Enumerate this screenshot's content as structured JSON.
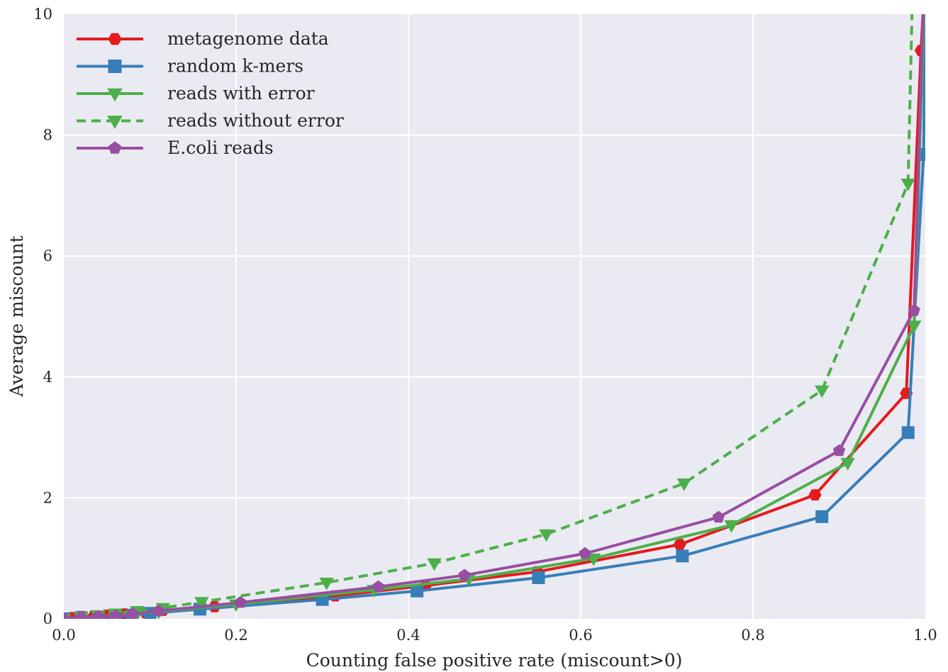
{
  "chart_data": {
    "type": "line",
    "title": "",
    "xlabel": "Counting false positive rate (miscount>0)",
    "ylabel": "Average miscount",
    "xlim": [
      0.0,
      1.0
    ],
    "ylim": [
      0,
      10
    ],
    "xticks": [
      0.0,
      0.2,
      0.4,
      0.6,
      0.8,
      1.0
    ],
    "xtick_labels": [
      "0.0",
      "0.2",
      "0.4",
      "0.6",
      "0.8",
      "1.0"
    ],
    "yticks": [
      0,
      2,
      4,
      6,
      8,
      10
    ],
    "ytick_labels": [
      "0",
      "2",
      "4",
      "6",
      "8",
      "10"
    ],
    "grid": true,
    "background": "#eaeaf2",
    "legend_position": "top-left",
    "series": [
      {
        "name": "metagenome data",
        "color": "#e41a1c",
        "style": "solid",
        "marker": "hexagon",
        "x": [
          0.0,
          0.01,
          0.02,
          0.035,
          0.05,
          0.07,
          0.095,
          0.115,
          0.175,
          0.315,
          0.42,
          0.55,
          0.715,
          0.872,
          0.978,
          0.995,
          0.998
        ],
        "y": [
          0.0,
          0.02,
          0.04,
          0.05,
          0.06,
          0.08,
          0.1,
          0.14,
          0.2,
          0.38,
          0.55,
          0.78,
          1.23,
          2.05,
          3.73,
          9.4,
          10.2
        ]
      },
      {
        "name": "random k-mers",
        "color": "#377eb8",
        "style": "solid",
        "marker": "square",
        "x": [
          0.0,
          0.02,
          0.04,
          0.06,
          0.08,
          0.1,
          0.158,
          0.3,
          0.41,
          0.551,
          0.718,
          0.88,
          0.98,
          0.998,
          1.0
        ],
        "y": [
          0.0,
          0.02,
          0.03,
          0.04,
          0.06,
          0.09,
          0.16,
          0.32,
          0.46,
          0.68,
          1.04,
          1.69,
          3.08,
          7.68,
          10.3
        ]
      },
      {
        "name": "reads with error",
        "color": "#4daf4a",
        "style": "solid",
        "marker": "triangle-down",
        "x": [
          0.0,
          0.02,
          0.04,
          0.06,
          0.085,
          0.11,
          0.2,
          0.36,
          0.47,
          0.615,
          0.775,
          0.91,
          0.987,
          0.999
        ],
        "y": [
          0.0,
          0.02,
          0.04,
          0.06,
          0.09,
          0.12,
          0.24,
          0.48,
          0.66,
          1.0,
          1.55,
          2.58,
          4.85,
          10.3
        ]
      },
      {
        "name": "reads without error",
        "color": "#4daf4a",
        "style": "dashed",
        "marker": "triangle-down",
        "x": [
          0.0,
          0.02,
          0.04,
          0.06,
          0.085,
          0.115,
          0.16,
          0.305,
          0.43,
          0.56,
          0.72,
          0.88,
          0.98,
          0.985
        ],
        "y": [
          0.0,
          0.03,
          0.06,
          0.09,
          0.13,
          0.18,
          0.28,
          0.6,
          0.92,
          1.4,
          2.24,
          3.78,
          7.2,
          10.3
        ]
      },
      {
        "name": "E.coli reads",
        "color": "#984ea3",
        "style": "solid",
        "marker": "pentagon",
        "x": [
          0.0,
          0.02,
          0.04,
          0.06,
          0.08,
          0.11,
          0.205,
          0.365,
          0.465,
          0.605,
          0.76,
          0.9,
          0.987,
          0.998
        ],
        "y": [
          0.0,
          0.02,
          0.04,
          0.05,
          0.08,
          0.13,
          0.27,
          0.53,
          0.72,
          1.08,
          1.68,
          2.78,
          5.1,
          10.3
        ]
      }
    ]
  }
}
